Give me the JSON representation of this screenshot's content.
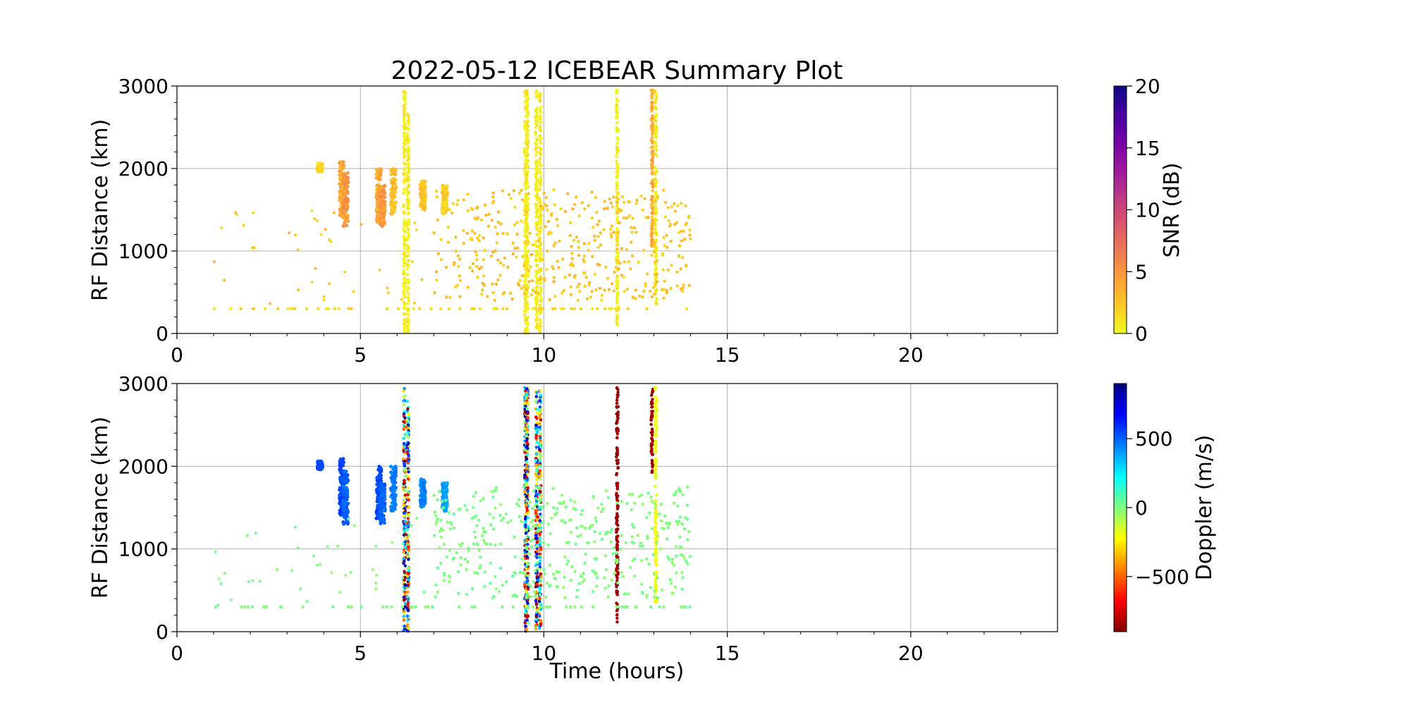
{
  "chart_data": [
    {
      "type": "scatter",
      "title": "2022-05-12 ICEBEAR Summary Plot",
      "xlabel": "",
      "ylabel": "RF Distance (km)",
      "xlim": [
        0,
        24
      ],
      "ylim": [
        0,
        3000
      ],
      "x_ticks": [
        0,
        5,
        10,
        15,
        20
      ],
      "y_ticks": [
        0,
        1000,
        2000,
        3000
      ],
      "grid": true,
      "color_variable": "SNR",
      "colorbar": {
        "label": "SNR (dB)",
        "colormap": "plasma_r",
        "range": [
          0,
          20
        ],
        "ticks": [
          0,
          5,
          10,
          15,
          20
        ],
        "gradient_colors": [
          "#f0f921",
          "#fdca26",
          "#fb9f3a",
          "#ed7953",
          "#d8576b",
          "#bd3786",
          "#9c179e",
          "#7201a8",
          "#46039f",
          "#0d0887"
        ]
      },
      "features": [
        {
          "kind": "cluster",
          "x": 3.9,
          "y": [
            1960,
            2060
          ],
          "snr": 1.5
        },
        {
          "kind": "cluster",
          "x": 4.5,
          "y": [
            1400,
            2090
          ],
          "snr": 4
        },
        {
          "kind": "cluster",
          "x": 4.6,
          "y": [
            1300,
            1950
          ],
          "snr": 5
        },
        {
          "kind": "cluster",
          "x": 5.5,
          "y": [
            1350,
            2000
          ],
          "snr": 4
        },
        {
          "kind": "cluster",
          "x": 5.6,
          "y": [
            1300,
            1800
          ],
          "snr": 5
        },
        {
          "kind": "cluster",
          "x": 5.9,
          "y": [
            1450,
            2000
          ],
          "snr": 3
        },
        {
          "kind": "cluster",
          "x": 6.7,
          "y": [
            1500,
            1850
          ],
          "snr": 2.5
        },
        {
          "kind": "cluster",
          "x": 7.3,
          "y": [
            1450,
            1800
          ],
          "snr": 2
        },
        {
          "kind": "streak",
          "x": 6.2,
          "y": [
            0,
            2950
          ],
          "snr": 0.5
        },
        {
          "kind": "streak",
          "x": 6.3,
          "y": [
            0,
            2700
          ],
          "snr": 0.5
        },
        {
          "kind": "streak",
          "x": 9.5,
          "y": [
            0,
            2950
          ],
          "snr": 0.5
        },
        {
          "kind": "streak",
          "x": 9.55,
          "y": [
            0,
            2950
          ],
          "snr": 0.5
        },
        {
          "kind": "streak",
          "x": 9.8,
          "y": [
            0,
            2950
          ],
          "snr": 0.5
        },
        {
          "kind": "streak",
          "x": 9.9,
          "y": [
            0,
            2950
          ],
          "snr": 0.5
        },
        {
          "kind": "streak",
          "x": 12.0,
          "y": [
            100,
            2950
          ],
          "snr": 0.5
        },
        {
          "kind": "streak",
          "x": 12.95,
          "y": [
            1050,
            2970
          ],
          "snr": 4
        },
        {
          "kind": "streak",
          "x": 13.05,
          "y": [
            350,
            2970
          ],
          "snr": 0.8
        },
        {
          "kind": "scatter_field",
          "x": [
            7.0,
            14.0
          ],
          "y": [
            400,
            1750
          ],
          "snr": 2.5
        },
        {
          "kind": "baseline",
          "x": [
            1.0,
            14.0
          ],
          "y": 300,
          "snr": 1.5
        }
      ]
    },
    {
      "type": "scatter",
      "title": "",
      "xlabel": "Time (hours)",
      "ylabel": "RF Distance (km)",
      "xlim": [
        0,
        24
      ],
      "ylim": [
        0,
        3000
      ],
      "x_ticks": [
        0,
        5,
        10,
        15,
        20
      ],
      "y_ticks": [
        0,
        1000,
        2000,
        3000
      ],
      "grid": true,
      "color_variable": "Doppler",
      "colorbar": {
        "label": "Doppler (m/s)",
        "colormap": "jet_r",
        "range": [
          -900,
          900
        ],
        "ticks": [
          -500,
          0,
          500
        ],
        "tick_labels": [
          "−500",
          "0",
          "500"
        ],
        "gradient_colors": [
          "#800000",
          "#ff0000",
          "#ff8000",
          "#ffff00",
          "#80ff80",
          "#00ffff",
          "#0080ff",
          "#0000ff",
          "#000080"
        ]
      },
      "features": [
        {
          "kind": "cluster",
          "x": 3.9,
          "y": [
            1960,
            2060
          ],
          "doppler": 550
        },
        {
          "kind": "cluster",
          "x": 4.5,
          "y": [
            1400,
            2090
          ],
          "doppler": 550
        },
        {
          "kind": "cluster",
          "x": 4.6,
          "y": [
            1300,
            1950
          ],
          "doppler": 500
        },
        {
          "kind": "cluster",
          "x": 5.5,
          "y": [
            1350,
            2000
          ],
          "doppler": 550
        },
        {
          "kind": "cluster",
          "x": 5.6,
          "y": [
            1300,
            1800
          ],
          "doppler": 500
        },
        {
          "kind": "cluster",
          "x": 5.9,
          "y": [
            1450,
            2000
          ],
          "doppler": 450
        },
        {
          "kind": "cluster",
          "x": 6.7,
          "y": [
            1500,
            1850
          ],
          "doppler": 450
        },
        {
          "kind": "cluster",
          "x": 7.3,
          "y": [
            1450,
            1800
          ],
          "doppler": 400
        },
        {
          "kind": "streak",
          "x": 6.2,
          "y": [
            0,
            2950
          ],
          "doppler": "mixed"
        },
        {
          "kind": "streak",
          "x": 6.3,
          "y": [
            0,
            2800
          ],
          "doppler": "mixed"
        },
        {
          "kind": "streak",
          "x": 9.5,
          "y": [
            0,
            2950
          ],
          "doppler": "mixed"
        },
        {
          "kind": "streak",
          "x": 9.55,
          "y": [
            0,
            2950
          ],
          "doppler": "mixed"
        },
        {
          "kind": "streak",
          "x": 9.8,
          "y": [
            0,
            2950
          ],
          "doppler": "mixed"
        },
        {
          "kind": "streak",
          "x": 9.9,
          "y": [
            0,
            2950
          ],
          "doppler": "mixed"
        },
        {
          "kind": "streak",
          "x": 12.0,
          "y": [
            100,
            2950
          ],
          "doppler": -850
        },
        {
          "kind": "streak",
          "x": 12.95,
          "y": [
            1850,
            2970
          ],
          "doppler": -850
        },
        {
          "kind": "streak",
          "x": 13.05,
          "y": [
            350,
            2970
          ],
          "doppler": -200
        },
        {
          "kind": "scatter_field",
          "x": [
            7.0,
            14.0
          ],
          "y": [
            400,
            1750
          ],
          "doppler": 0
        },
        {
          "kind": "baseline",
          "x": [
            1.0,
            14.0
          ],
          "y": 300,
          "doppler": 0
        }
      ]
    }
  ]
}
